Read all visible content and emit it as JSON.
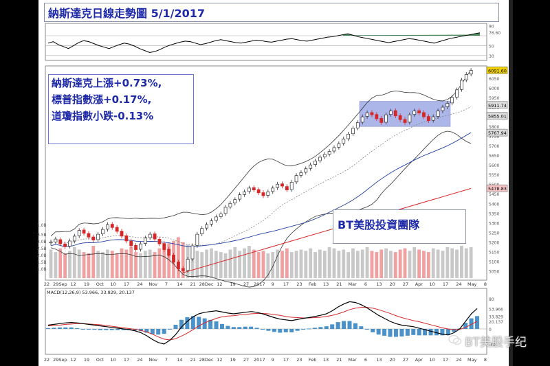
{
  "title": "納斯達克日線走勢圖 5/1/2017",
  "notes": [
    "納斯達克上漲+0.73%,",
    "標普指數漲+0.17%,",
    "道瓊指數小跌-0.13%"
  ],
  "team_label": "BT美股投資團隊",
  "watermark": "BT美股手纪",
  "colors": {
    "up": "#2d2d2d",
    "down": "#d62728",
    "band": "#4a5fcf",
    "volume_up": "#c8c8c8",
    "volume_down": "#f0a0a0",
    "macd_line": "#000000",
    "signal_line": "#d62728",
    "histogram": "#2a7fc0",
    "rsi_fill": "#1f6f3a"
  },
  "chart_data": [
    {
      "type": "line",
      "name": "rsi_panel",
      "y_ticks": [
        "90",
        "76.60",
        "50",
        "30"
      ],
      "ylim": [
        20,
        95
      ],
      "values": [
        55,
        58,
        52,
        48,
        44,
        50,
        56,
        60,
        58,
        54,
        50,
        47,
        44,
        48,
        52,
        55,
        53,
        49,
        44,
        40,
        36,
        38,
        42,
        47,
        51,
        54,
        57,
        59,
        58,
        55,
        52,
        54,
        57,
        60,
        62,
        60,
        58,
        56,
        55,
        57,
        59,
        61,
        60,
        58,
        57,
        59,
        61,
        63,
        64,
        62,
        60,
        59,
        61,
        63,
        65,
        67,
        68,
        70,
        72,
        74,
        71,
        68,
        66,
        64,
        62,
        60,
        58,
        56,
        58,
        60,
        62,
        64,
        63,
        61,
        59,
        57,
        55,
        58,
        61,
        64,
        66,
        68,
        70,
        72,
        74,
        76
      ]
    },
    {
      "type": "candlestick",
      "name": "price_panel",
      "ylim": [
        5030,
        6100
      ],
      "y_ticks": [
        "6091.60",
        "6050",
        "6000",
        "5950",
        "5900",
        "5850",
        "5800",
        "5750",
        "5700",
        "5650",
        "5600",
        "5550",
        "5500",
        "5450",
        "5400",
        "5350",
        "5300",
        "5250",
        "5200",
        "5150",
        "5100",
        "5050"
      ],
      "price_labels": [
        "6091.60",
        "5911.74",
        "5855.01",
        "5767.94",
        "5478.83"
      ],
      "x_labels": [
        "22",
        "29Sep",
        "12",
        "19",
        "Oct",
        "10",
        "17",
        "24",
        "Nov",
        "7",
        "14",
        "21",
        "28Dec",
        "12",
        "19",
        "27",
        "2017",
        "9",
        "17",
        "23",
        "Feb",
        "13",
        "21",
        "Mar",
        "6",
        "13",
        "20",
        "27",
        "Apr",
        "10",
        "17",
        "24",
        "May",
        "8"
      ],
      "volume_labels": [
        "1.0B",
        "3.5B",
        "3.0B",
        "2.5B",
        "2.0B",
        "1.5B",
        "1.0B"
      ],
      "close": [
        5200,
        5215,
        5190,
        5175,
        5205,
        5230,
        5260,
        5245,
        5225,
        5210,
        5240,
        5265,
        5290,
        5275,
        5255,
        5230,
        5205,
        5180,
        5160,
        5190,
        5220,
        5240,
        5215,
        5190,
        5160,
        5130,
        5095,
        5060,
        5050,
        5110,
        5180,
        5240,
        5270,
        5290,
        5310,
        5330,
        5345,
        5380,
        5400,
        5420,
        5445,
        5460,
        5480,
        5470,
        5455,
        5440,
        5460,
        5480,
        5500,
        5490,
        5470,
        5510,
        5545,
        5560,
        5580,
        5600,
        5620,
        5640,
        5655,
        5670,
        5690,
        5710,
        5735,
        5760,
        5790,
        5820,
        5850,
        5870,
        5860,
        5840,
        5820,
        5860,
        5880,
        5855,
        5835,
        5820,
        5860,
        5880,
        5870,
        5850,
        5830,
        5850,
        5880,
        5900,
        5920,
        5950,
        5990,
        6040,
        6070,
        6091
      ],
      "open": [
        5195,
        5200,
        5212,
        5190,
        5178,
        5205,
        5232,
        5262,
        5244,
        5226,
        5212,
        5242,
        5266,
        5292,
        5276,
        5256,
        5232,
        5204,
        5182,
        5162,
        5192,
        5222,
        5242,
        5214,
        5192,
        5162,
        5132,
        5096,
        5062,
        5052,
        5112,
        5182,
        5242,
        5272,
        5292,
        5312,
        5332,
        5348,
        5382,
        5402,
        5422,
        5446,
        5462,
        5482,
        5472,
        5456,
        5442,
        5462,
        5482,
        5502,
        5488,
        5472,
        5512,
        5546,
        5562,
        5582,
        5602,
        5622,
        5642,
        5656,
        5672,
        5692,
        5712,
        5736,
        5762,
        5792,
        5822,
        5852,
        5872,
        5862,
        5842,
        5822,
        5862,
        5882,
        5856,
        5836,
        5822,
        5862,
        5882,
        5872,
        5852,
        5832,
        5852,
        5882,
        5902,
        5922,
        5952,
        5992,
        6042,
        6072
      ],
      "volume": [
        2.3,
        2.1,
        2.4,
        2.0,
        2.2,
        2.5,
        2.3,
        2.1,
        2.0,
        2.6,
        2.2,
        2.1,
        2.3,
        2.2,
        2.0,
        2.4,
        2.3,
        2.5,
        2.1,
        2.0,
        2.2,
        2.3,
        2.1,
        2.4,
        2.6,
        2.8,
        3.0,
        3.3,
        2.9,
        2.7,
        2.5,
        2.2,
        2.1,
        2.3,
        2.4,
        2.2,
        2.1,
        2.0,
        2.3,
        2.5,
        2.2,
        2.4,
        2.6,
        2.3,
        2.1,
        2.2,
        2.0,
        2.1,
        2.3,
        2.2,
        2.4,
        2.1,
        2.2,
        2.3,
        2.2,
        2.4,
        2.1,
        2.3,
        2.2,
        2.5,
        2.4,
        2.2,
        2.3,
        2.1,
        2.4,
        2.2,
        2.3,
        2.5,
        2.2,
        2.1,
        2.3,
        2.4,
        2.2,
        2.1,
        2.3,
        2.4,
        2.2,
        2.5,
        2.3,
        2.2,
        2.1,
        2.4,
        2.3,
        2.2,
        2.5,
        2.4,
        2.3,
        2.6,
        2.4,
        2.5
      ]
    },
    {
      "type": "macd",
      "name": "macd_panel",
      "legend": "MACD(12,26,9) 53.966, 33.829, 20.137",
      "y_ticks": [
        "80",
        "53.966",
        "33.829",
        "20.137",
        "0",
        "-40"
      ],
      "ylim": [
        -60,
        100
      ],
      "macd": [
        10,
        12,
        14,
        16,
        17,
        16,
        14,
        12,
        10,
        8,
        6,
        4,
        2,
        0,
        -2,
        -5,
        -10,
        -18,
        -28,
        -36,
        -40,
        -30,
        -15,
        5,
        20,
        32,
        40,
        44,
        46,
        48,
        45,
        42,
        40,
        42,
        44,
        46,
        44,
        40,
        35,
        30,
        26,
        24,
        22,
        25,
        28,
        30,
        33,
        36,
        40,
        48,
        58,
        66,
        72,
        70,
        64,
        56,
        46,
        36,
        28,
        20,
        14,
        10,
        8,
        6,
        2,
        -2,
        -6,
        -10,
        -14,
        -16,
        -10,
        0,
        20,
        40,
        54
      ],
      "signal": [
        8,
        9,
        10,
        12,
        13,
        14,
        14,
        13,
        12,
        11,
        9,
        7,
        5,
        3,
        1,
        -1,
        -4,
        -8,
        -14,
        -21,
        -27,
        -29,
        -26,
        -19,
        -11,
        -2,
        8,
        16,
        22,
        28,
        32,
        34,
        35,
        37,
        38,
        40,
        41,
        41,
        40,
        38,
        36,
        33,
        31,
        30,
        29,
        29,
        30,
        31,
        33,
        36,
        40,
        45,
        51,
        55,
        57,
        57,
        55,
        51,
        46,
        41,
        35,
        30,
        26,
        22,
        19,
        15,
        11,
        7,
        3,
        0,
        -2,
        -1,
        4,
        12,
        20
      ]
    }
  ]
}
